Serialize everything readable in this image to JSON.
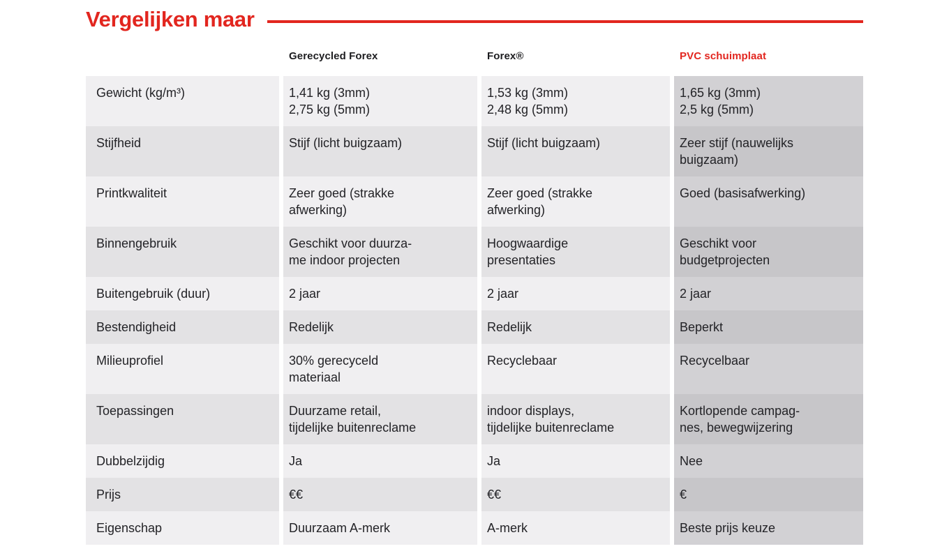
{
  "page": {
    "title": "Vergelijken maar",
    "accent_color": "#e2261f"
  },
  "table": {
    "columns": [
      {
        "label": ""
      },
      {
        "label": "Gerecycled Forex"
      },
      {
        "label": "Forex®"
      },
      {
        "label": "PVC schuimplaat",
        "highlight": true
      }
    ],
    "rows": [
      {
        "label": "Gewicht (kg/m³)",
        "cells": [
          "1,41 kg (3mm)\n2,75 kg (5mm)",
          "1,53 kg (3mm)\n2,48 kg (5mm)",
          "1,65 kg (3mm)\n2,5 kg (5mm)"
        ]
      },
      {
        "label": "Stijfheid",
        "cells": [
          "Stijf (licht buigzaam)",
          "Stijf (licht buigzaam)",
          "Zeer stijf (nauwelijks\nbuigzaam)"
        ]
      },
      {
        "label": "Printkwaliteit",
        "cells": [
          "Zeer goed (strakke\nafwerking)",
          "Zeer goed (strakke\nafwerking)",
          "Goed (basisafwerking)"
        ]
      },
      {
        "label": "Binnengebruik",
        "cells": [
          "Geschikt voor duurza-\nme indoor projecten",
          "Hoogwaardige\npresentaties",
          "Geschikt voor\nbudgetprojecten"
        ]
      },
      {
        "label": "Buitengebruik (duur)",
        "cells": [
          "2 jaar",
          "2 jaar",
          "2 jaar"
        ]
      },
      {
        "label": "Bestendigheid",
        "cells": [
          "Redelijk",
          "Redelijk",
          "Beperkt"
        ]
      },
      {
        "label": "Milieuprofiel",
        "cells": [
          "30% gerecyceld\nmateriaal",
          "Recyclebaar",
          "Recycelbaar"
        ]
      },
      {
        "label": "Toepassingen",
        "cells": [
          "Duurzame retail,\ntijdelijke buitenreclame",
          "indoor displays,\ntijdelijke buitenreclame",
          "Kortlopende campag-\nnes, bewegwijzering"
        ]
      },
      {
        "label": "Dubbelzijdig",
        "cells": [
          "Ja",
          "Ja",
          "Nee"
        ]
      },
      {
        "label": "Prijs",
        "cells": [
          "€€",
          "€€",
          "€"
        ]
      },
      {
        "label": "Eigenschap",
        "cells": [
          "Duurzaam A-merk",
          "A-merk",
          "Beste prijs keuze"
        ]
      }
    ]
  }
}
